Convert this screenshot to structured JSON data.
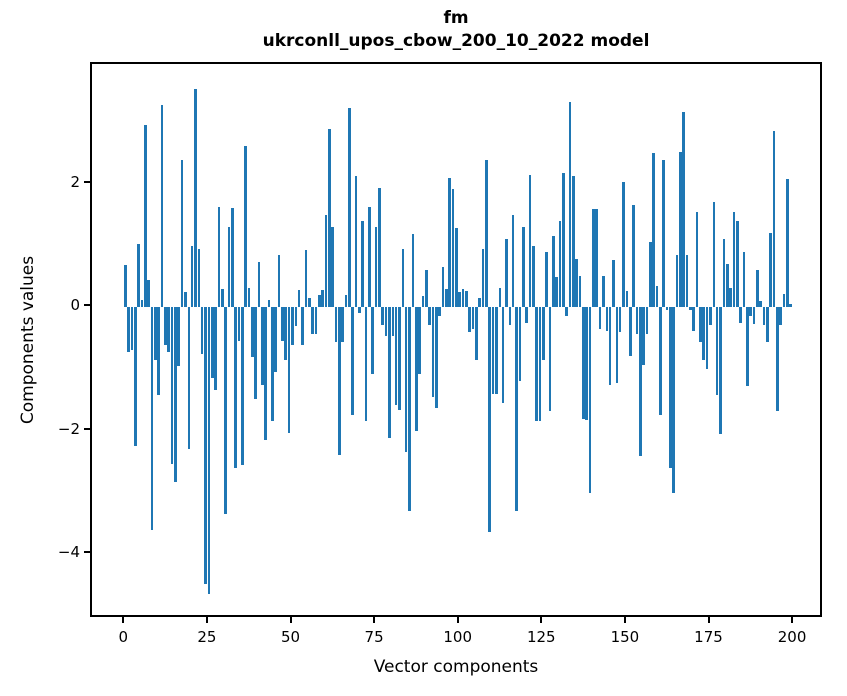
{
  "header": {
    "title_line1": "fm",
    "title_line2": "ukrconll_upos_cbow_200_10_2022 model"
  },
  "chart_data": {
    "type": "bar",
    "title": "fm",
    "subtitle": "ukrconll_upos_cbow_200_10_2022 model",
    "xlabel": "Vector components",
    "ylabel": "Components values",
    "legend": "none",
    "grid": false,
    "bar_color": "#1f77b4",
    "xlim": [
      -9.95,
      208.95
    ],
    "ylim": [
      -5.05,
      3.94
    ],
    "xticks": [
      {
        "value": 0,
        "label": "0"
      },
      {
        "value": 25,
        "label": "25"
      },
      {
        "value": 50,
        "label": "50"
      },
      {
        "value": 75,
        "label": "75"
      },
      {
        "value": 100,
        "label": "100"
      },
      {
        "value": 125,
        "label": "125"
      },
      {
        "value": 150,
        "label": "150"
      },
      {
        "value": 175,
        "label": "175"
      },
      {
        "value": 200,
        "label": "200"
      }
    ],
    "yticks": [
      {
        "value": 2,
        "label": "2"
      },
      {
        "value": 0,
        "label": "0"
      },
      {
        "value": -2,
        "label": "−2"
      },
      {
        "value": -4,
        "label": "−4"
      }
    ],
    "x_start": 0,
    "values": [
      0.68,
      -0.72,
      -0.7,
      -2.25,
      1.03,
      0.12,
      2.95,
      0.45,
      -3.61,
      -0.85,
      -1.43,
      3.28,
      -0.61,
      -0.73,
      -2.54,
      -2.84,
      -0.96,
      2.38,
      0.25,
      -2.29,
      1.0,
      3.53,
      0.95,
      -0.76,
      -4.48,
      -4.64,
      -1.14,
      -1.35,
      1.62,
      0.3,
      -3.35,
      1.3,
      1.61,
      -2.6,
      -0.55,
      -2.55,
      2.62,
      0.31,
      -0.8,
      -1.49,
      0.73,
      -1.26,
      -2.16,
      0.11,
      -1.85,
      -1.05,
      0.85,
      -0.55,
      -0.85,
      -2.04,
      -0.61,
      -0.3,
      0.28,
      -0.61,
      0.93,
      0.15,
      -0.43,
      -0.44,
      0.2,
      0.28,
      1.5,
      2.88,
      1.3,
      -0.56,
      -2.4,
      -0.56,
      0.2,
      3.22,
      -1.75,
      2.12,
      -0.1,
      1.4,
      -1.85,
      1.63,
      -1.08,
      1.3,
      1.94,
      -0.29,
      -0.47,
      -2.12,
      -0.47,
      -1.58,
      -1.67,
      0.95,
      -2.35,
      -3.3,
      1.18,
      -2.01,
      -1.08,
      0.18,
      0.6,
      -0.29,
      -1.46,
      -1.64,
      -0.15,
      0.65,
      0.3,
      2.1,
      1.92,
      1.29,
      0.25,
      0.3,
      0.27,
      -0.4,
      -0.35,
      -0.85,
      0.15,
      0.95,
      2.38,
      -3.65,
      -1.4,
      -1.4,
      0.32,
      -1.55,
      1.1,
      -0.29,
      1.5,
      -3.3,
      -1.2,
      1.3,
      -0.26,
      2.15,
      1.0,
      -1.85,
      -1.85,
      -0.85,
      0.9,
      -1.68,
      1.15,
      0.49,
      1.4,
      2.18,
      -0.15,
      3.32,
      2.13,
      0.78,
      0.51,
      -1.81,
      -1.83,
      -3.01,
      1.6,
      1.6,
      -0.35,
      0.5,
      -0.38,
      -1.26,
      0.76,
      -1.23,
      -0.41,
      2.03,
      0.26,
      -0.79,
      1.65,
      -0.44,
      -2.41,
      -0.94,
      -0.44,
      1.05,
      2.5,
      0.35,
      -1.75,
      2.38,
      -0.05,
      -2.6,
      -3.01,
      0.85,
      2.52,
      3.16,
      0.85,
      -0.05,
      -0.38,
      1.55,
      -0.56,
      -0.85,
      -1.0,
      -0.29,
      1.7,
      -1.42,
      -2.05,
      1.1,
      0.7,
      0.32,
      1.55,
      1.4,
      -0.26,
      0.9,
      -1.28,
      -0.15,
      -0.28,
      0.6,
      0.1,
      -0.29,
      -0.56,
      1.2,
      2.85,
      -1.68,
      -0.29,
      0.22,
      2.08,
      0.05
    ]
  },
  "layout_note": "static matplotlib-style bar chart"
}
